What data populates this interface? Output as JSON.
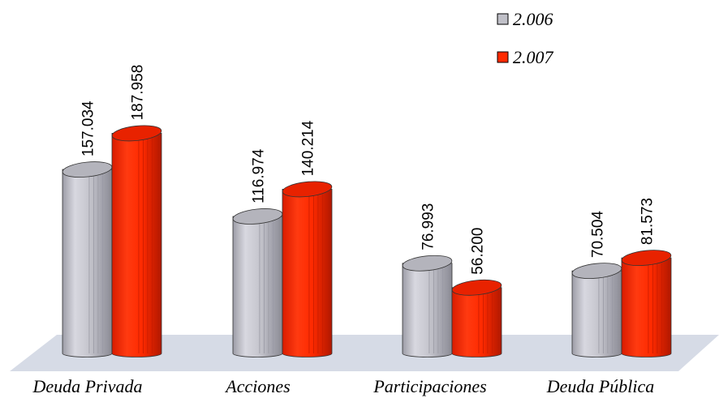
{
  "chart_data": {
    "type": "bar",
    "categories": [
      "Deuda Privada",
      "Acciones",
      "Participaciones",
      "Deuda Pública"
    ],
    "series": [
      {
        "name": "2.006",
        "values": [
          157.034,
          116.974,
          76.993,
          70.504
        ],
        "labels": [
          "157.034",
          "116.974",
          "76.993",
          "70.504"
        ]
      },
      {
        "name": "2.007",
        "values": [
          187.958,
          140.214,
          56.2,
          81.573
        ],
        "labels": [
          "187.958",
          "140.214",
          "56.200",
          "81.573"
        ]
      }
    ],
    "ylim": [
      0,
      200
    ],
    "grid": false,
    "legend": "top-right",
    "style": "3d-cylinder"
  },
  "colors": {
    "series_2006": "#c0c0c8",
    "series_2006_dark": "#8a8a94",
    "series_2007": "#ff2a00",
    "series_2007_dark": "#b01800",
    "floor": "#d6dbe6"
  }
}
